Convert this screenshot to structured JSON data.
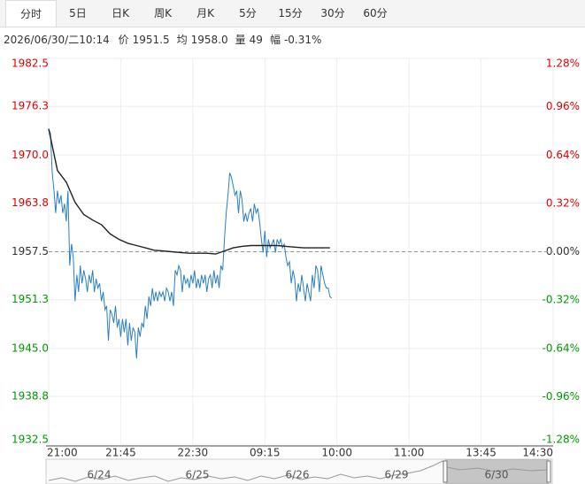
{
  "tabs": {
    "items": [
      "分时",
      "5日",
      "日K",
      "周K",
      "月K",
      "5分",
      "15分",
      "30分",
      "60分"
    ],
    "active": 0
  },
  "info": {
    "time": "2026/06/30/二10:14",
    "fields": [
      {
        "label": "价",
        "value": "1951.5"
      },
      {
        "label": "均",
        "value": "1958.0"
      },
      {
        "label": "量",
        "value": "49"
      },
      {
        "label": "幅",
        "value": "-0.31%"
      }
    ]
  },
  "chart_data": {
    "type": "line",
    "ylim": [
      1932.5,
      1982.5
    ],
    "yticks": [
      1932.5,
      1938.8,
      {
        "value": 1945,
        "label": "1945.0"
      },
      1951.3,
      1957.5,
      1963.8,
      {
        "value": 1970,
        "label": "1970.0"
      },
      1976.3,
      1982.5
    ],
    "y2lim": [
      -1.28,
      1.28
    ],
    "y2ticks": [
      {
        "value": -1.28,
        "label": "-1.28%"
      },
      {
        "value": -0.96,
        "label": "-0.96%"
      },
      {
        "value": -0.64,
        "label": "-0.64%"
      },
      {
        "value": -0.32,
        "label": "-0.32%"
      },
      {
        "value": 0,
        "label": "0.00%"
      },
      {
        "value": 0.32,
        "label": "0.32%"
      },
      {
        "value": 0.64,
        "label": "0.64%"
      },
      {
        "value": 0.96,
        "label": "0.96%"
      },
      {
        "value": 1.28,
        "label": "1.28%"
      }
    ],
    "xlim": [
      0,
      287
    ],
    "xticks": [
      {
        "value": 0,
        "label": "21:00"
      },
      {
        "value": 41,
        "label": "21:45"
      },
      {
        "value": 82,
        "label": "22:30"
      },
      {
        "value": 123,
        "label": "09:15"
      },
      {
        "value": 164,
        "label": "10:00"
      },
      {
        "value": 205,
        "label": "11:00"
      },
      {
        "value": 246,
        "label": "13:45"
      },
      {
        "value": 287,
        "label": "14:30"
      }
    ],
    "reference_line": 1957.5,
    "grid": true,
    "up_color": "#e00000",
    "down_color": "#009900",
    "flat_color": "#333333",
    "series": [
      {
        "color": "#2a7fc0",
        "values": [
          1973.4,
          1972.8,
          1967.7,
          1965.4,
          1962.5,
          1965.4,
          1963.7,
          1964.8,
          1962.5,
          1963.7,
          1961.4,
          1965.4,
          1955.7,
          1958.5,
          1956.8,
          1951.1,
          1954.5,
          1952.3,
          1955.7,
          1953.4,
          1955.1,
          1954.0,
          1952.3,
          1954.5,
          1953.4,
          1955.1,
          1952.3,
          1954.0,
          1952.8,
          1953.4,
          1951.1,
          1952.3,
          1950.0,
          1950.5,
          1946.0,
          1950.0,
          1949.4,
          1948.3,
          1950.5,
          1947.7,
          1948.8,
          1946.5,
          1948.8,
          1947.1,
          1948.8,
          1945.4,
          1948.3,
          1946.0,
          1947.7,
          1947.1,
          1943.7,
          1947.7,
          1946.5,
          1948.3,
          1947.7,
          1950.5,
          1948.8,
          1951.7,
          1950.5,
          1952.8,
          1951.1,
          1952.3,
          1951.1,
          1952.3,
          1951.7,
          1952.3,
          1951.1,
          1952.8,
          1952.3,
          1951.1,
          1952.3,
          1950.5,
          1955.1,
          1954.5,
          1955.7,
          1955.1,
          1952.3,
          1954.5,
          1953.4,
          1954.0,
          1952.8,
          1954.5,
          1953.4,
          1955.1,
          1952.8,
          1954.0,
          1952.8,
          1954.5,
          1953.4,
          1954.5,
          1952.3,
          1954.0,
          1954.5,
          1952.8,
          1955.1,
          1953.4,
          1954.5,
          1952.8,
          1955.7,
          1955.1,
          1959.1,
          1962.5,
          1964.8,
          1967.7,
          1967.1,
          1966.0,
          1964.8,
          1965.4,
          1962.5,
          1965.4,
          1964.2,
          1961.4,
          1962.5,
          1961.4,
          1962.5,
          1963.1,
          1961.4,
          1963.7,
          1962.5,
          1963.1,
          1961.4,
          1959.1,
          1957.4,
          1960.2,
          1956.8,
          1959.1,
          1958.0,
          1958.5,
          1959.1,
          1957.4,
          1959.1,
          1958.5,
          1959.1,
          1958.0,
          1958.5,
          1956.8,
          1955.7,
          1956.2,
          1953.4,
          1955.1,
          1954.0,
          1951.1,
          1953.4,
          1952.3,
          1954.5,
          1952.8,
          1951.1,
          1953.4,
          1952.3,
          1951.1,
          1954.5,
          1952.8,
          1955.7,
          1955.1,
          1952.3,
          1955.7,
          1954.5,
          1953.4,
          1952.8,
          1952.8,
          1951.7,
          1951.5
        ]
      },
      {
        "color": "#222222",
        "x": [
          0,
          5,
          10,
          15,
          20,
          25,
          30,
          35,
          40,
          45,
          50,
          55,
          60,
          65,
          70,
          75,
          80,
          85,
          90,
          95,
          100,
          105,
          110,
          115,
          120,
          125,
          130,
          135,
          140,
          145,
          150,
          155,
          160
        ],
        "values": [
          1973.4,
          1968.0,
          1966.5,
          1963.9,
          1962.3,
          1961.6,
          1961.0,
          1959.8,
          1959.1,
          1958.6,
          1958.3,
          1958.0,
          1957.7,
          1957.6,
          1957.5,
          1957.4,
          1957.3,
          1957.3,
          1957.3,
          1957.2,
          1957.6,
          1958.0,
          1958.2,
          1958.3,
          1958.3,
          1958.3,
          1958.3,
          1958.2,
          1958.1,
          1958.0,
          1958.0,
          1958.0,
          1958.0
        ]
      }
    ]
  },
  "navigator": {
    "labels": [
      "6/24",
      "6/25",
      "6/26",
      "6/29",
      "6/30"
    ]
  }
}
